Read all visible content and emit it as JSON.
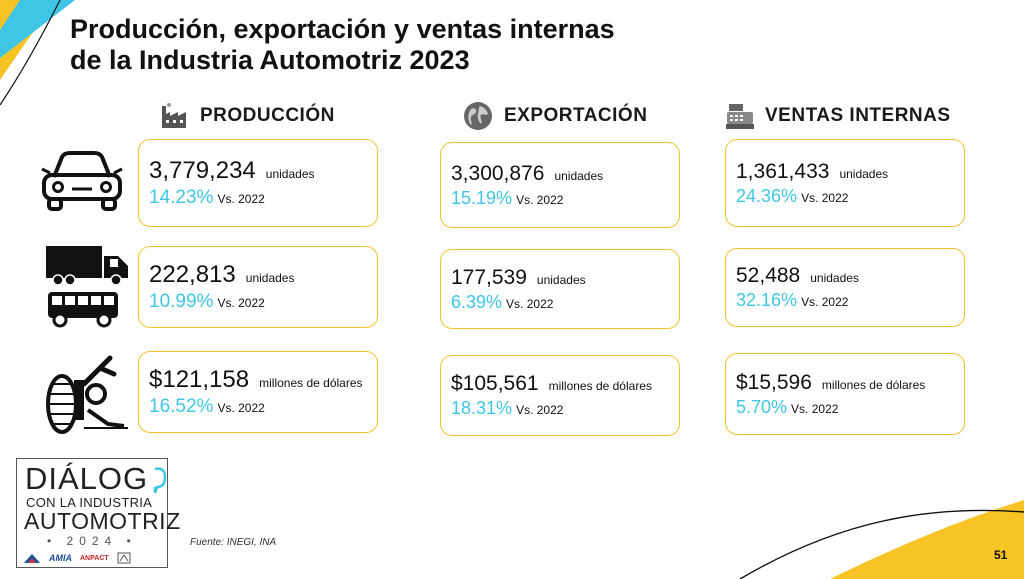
{
  "slide": {
    "title_line1": "Producción, exportación y ventas internas",
    "title_line2": "de la Industria Automotriz 2023",
    "source": "Fuente: INEGI, INA",
    "page_number": "51"
  },
  "columns": {
    "produccion": {
      "header": "PRODUCCIÓN",
      "icon": "factory-icon",
      "rows": [
        {
          "value": "3,779,234",
          "unit": "unidades",
          "pct": "14.23%",
          "vs": "Vs. 2022"
        },
        {
          "value": "222,813",
          "unit": "unidades",
          "pct": "10.99%",
          "vs": "Vs. 2022"
        },
        {
          "value": "$121,158",
          "unit": "millones de dólares",
          "pct": "16.52%",
          "vs": "Vs. 2022"
        }
      ]
    },
    "exportacion": {
      "header": "EXPORTACIÓN",
      "icon": "globe-icon",
      "rows": [
        {
          "value": "3,300,876",
          "unit": "unidades",
          "pct": "15.19%",
          "vs": "Vs. 2022"
        },
        {
          "value": "177,539",
          "unit": "unidades",
          "pct": "6.39%",
          "vs": "Vs. 2022"
        },
        {
          "value": "$105,561",
          "unit": "millones de dólares",
          "pct": "18.31%",
          "vs": "Vs. 2022"
        }
      ]
    },
    "ventas": {
      "header": "VENTAS INTERNAS",
      "icon": "cash-register-icon",
      "rows": [
        {
          "value": "1,361,433",
          "unit": "unidades",
          "pct": "24.36%",
          "vs": "Vs. 2022"
        },
        {
          "value": "52,488",
          "unit": "unidades",
          "pct": "32.16%",
          "vs": "Vs. 2022"
        },
        {
          "value": "$15,596",
          "unit": "millones de dólares",
          "pct": "5.70%",
          "vs": "Vs. 2022"
        }
      ]
    }
  },
  "row_icons": [
    "car-icon",
    "truck-bus-icon",
    "auto-parts-icon"
  ],
  "logo": {
    "line1": "DIÁLOG",
    "line2": "CON LA INDUSTRIA",
    "line3": "AUTOMOTRIZ",
    "line4": "• 2024 •",
    "sponsors": [
      "AMIA",
      "ANPACT"
    ]
  },
  "colors": {
    "accent_cyan": "#3fc6e6",
    "accent_yellow": "#f4c430",
    "text": "#111111"
  }
}
